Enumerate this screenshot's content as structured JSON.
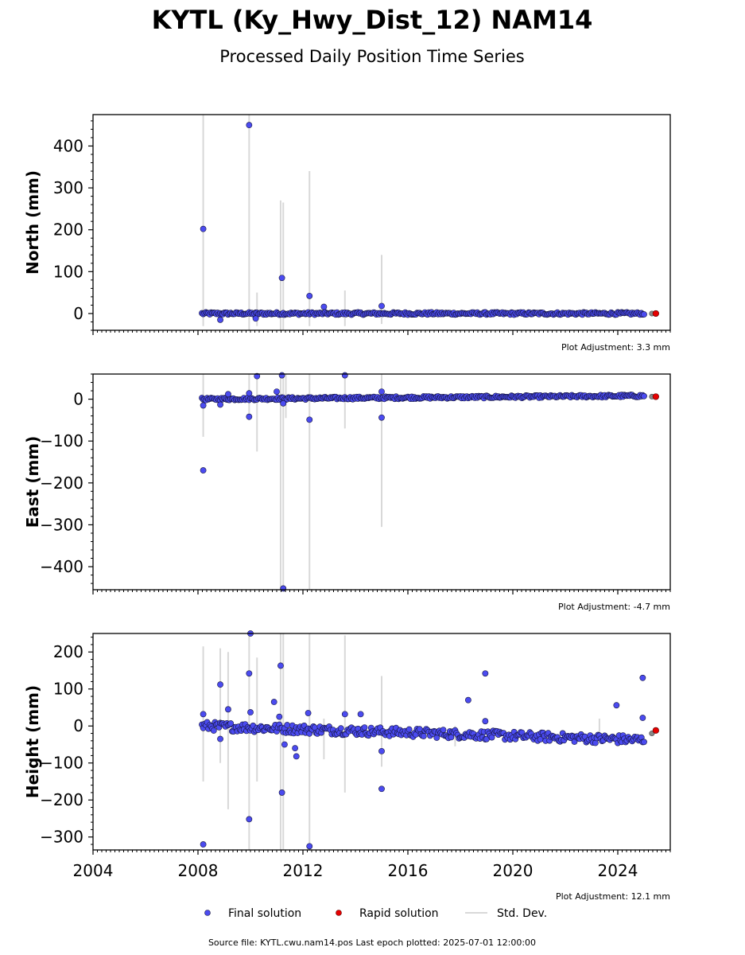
{
  "title": "KYTL (Ky_Hwy_Dist_12) NAM14",
  "subtitle": "Processed Daily Position Time Series",
  "footer": "Source file: KYTL.cwu.nam14.pos  Last epoch plotted: 2025-07-01 12:00:00",
  "legend": {
    "final_label": "Final solution",
    "rapid_label": "Rapid solution",
    "std_label": "Std. Dev."
  },
  "colors": {
    "final": "#4b4bf0",
    "rapid": "#e60000",
    "std": "#d8d8d8",
    "edge": "#14143c"
  },
  "chart_data": [
    {
      "type": "scatter",
      "ylabel": "North (mm)",
      "xlim": [
        2004,
        2026
      ],
      "ylim": [
        -40,
        475
      ],
      "yticks": [
        0,
        100,
        200,
        300,
        400
      ],
      "ytick_labels": [
        "0",
        "100",
        "200",
        "300",
        "400"
      ],
      "xticks": [
        2004,
        2008,
        2012,
        2016,
        2020,
        2024
      ],
      "xtick_labels": [],
      "adjustment": "Plot Adjustment: 3.3 mm",
      "base": {
        "start": 2008.15,
        "end": 2025.0,
        "y0": 0,
        "y1": 0,
        "noise": 3
      },
      "outliers": [
        [
          2008.2,
          202
        ],
        [
          2009.95,
          450
        ],
        [
          2011.2,
          85
        ],
        [
          2012.25,
          42
        ],
        [
          2012.8,
          16
        ],
        [
          2015.0,
          18
        ],
        [
          2010.2,
          -12
        ],
        [
          2008.85,
          -15
        ]
      ],
      "std_bars": [
        [
          2008.2,
          -30,
          475
        ],
        [
          2009.95,
          -40,
          475
        ],
        [
          2010.25,
          -30,
          50
        ],
        [
          2011.15,
          -40,
          270
        ],
        [
          2011.25,
          -40,
          265
        ],
        [
          2012.25,
          -30,
          340
        ],
        [
          2013.6,
          -30,
          55
        ],
        [
          2015.0,
          -25,
          140
        ]
      ],
      "rapid": [
        [
          2025.45,
          0
        ]
      ],
      "rapid_final": [
        [
          2025.3,
          0
        ]
      ]
    },
    {
      "type": "scatter",
      "ylabel": "East (mm)",
      "xlim": [
        2004,
        2026
      ],
      "ylim": [
        -455,
        60
      ],
      "yticks": [
        -400,
        -300,
        -200,
        -100,
        0
      ],
      "ytick_labels": [
        "−400",
        "−300",
        "−200",
        "−100",
        "0"
      ],
      "xticks": [
        2004,
        2008,
        2012,
        2016,
        2020,
        2024
      ],
      "xtick_labels": [],
      "adjustment": "Plot Adjustment: -4.7 mm",
      "base": {
        "start": 2008.15,
        "end": 2025.0,
        "y0": 0,
        "y1": 8,
        "noise": 3
      },
      "outliers": [
        [
          2008.2,
          -170
        ],
        [
          2008.2,
          -15
        ],
        [
          2009.15,
          12
        ],
        [
          2008.85,
          -13
        ],
        [
          2009.95,
          -42
        ],
        [
          2009.95,
          14
        ],
        [
          2010.25,
          55
        ],
        [
          2011.0,
          18
        ],
        [
          2011.2,
          57
        ],
        [
          2011.25,
          -10
        ],
        [
          2011.25,
          -452
        ],
        [
          2012.25,
          -49
        ],
        [
          2013.6,
          57
        ],
        [
          2015.0,
          -44
        ],
        [
          2015.0,
          18
        ]
      ],
      "std_bars": [
        [
          2008.2,
          -90,
          60
        ],
        [
          2009.95,
          -50,
          60
        ],
        [
          2010.25,
          -125,
          60
        ],
        [
          2011.15,
          -455,
          60
        ],
        [
          2011.25,
          -455,
          60
        ],
        [
          2011.35,
          -45,
          60
        ],
        [
          2012.25,
          -455,
          60
        ],
        [
          2013.6,
          -70,
          60
        ],
        [
          2015.0,
          -305,
          60
        ]
      ],
      "rapid": [
        [
          2025.45,
          6
        ]
      ],
      "rapid_final": [
        [
          2025.3,
          6
        ]
      ]
    },
    {
      "type": "scatter",
      "ylabel": "Height (mm)",
      "xlim": [
        2004,
        2026
      ],
      "ylim": [
        -335,
        250
      ],
      "yticks": [
        -300,
        -200,
        -100,
        0,
        100,
        200
      ],
      "ytick_labels": [
        "−300",
        "−200",
        "−100",
        "0",
        "100",
        "200"
      ],
      "xticks": [
        2004,
        2008,
        2012,
        2016,
        2020,
        2024
      ],
      "xtick_labels": [
        "2004",
        "2008",
        "2012",
        "2016",
        "2020",
        "2024"
      ],
      "adjustment": "Plot Adjustment: 12.1 mm",
      "base": {
        "start": 2008.15,
        "end": 2025.0,
        "y0": 0,
        "y1": -38,
        "noise": 12
      },
      "outliers": [
        [
          2008.2,
          -320
        ],
        [
          2008.2,
          32
        ],
        [
          2008.85,
          112
        ],
        [
          2008.85,
          -35
        ],
        [
          2009.15,
          45
        ],
        [
          2009.95,
          142
        ],
        [
          2009.95,
          -252
        ],
        [
          2010.0,
          250
        ],
        [
          2010.0,
          37
        ],
        [
          2010.9,
          65
        ],
        [
          2011.15,
          163
        ],
        [
          2011.2,
          -180
        ],
        [
          2011.1,
          25
        ],
        [
          2011.3,
          -50
        ],
        [
          2011.7,
          -60
        ],
        [
          2011.75,
          -82
        ],
        [
          2012.2,
          35
        ],
        [
          2012.25,
          -325
        ],
        [
          2013.6,
          32
        ],
        [
          2014.2,
          32
        ],
        [
          2015.0,
          -170
        ],
        [
          2015.0,
          -68
        ],
        [
          2018.3,
          70
        ],
        [
          2018.95,
          142
        ],
        [
          2018.95,
          13
        ],
        [
          2023.95,
          56
        ],
        [
          2024.95,
          130
        ],
        [
          2024.95,
          22
        ]
      ],
      "std_bars": [
        [
          2008.2,
          -150,
          215
        ],
        [
          2008.85,
          -100,
          210
        ],
        [
          2009.15,
          -225,
          200
        ],
        [
          2009.95,
          -335,
          250
        ],
        [
          2010.25,
          -150,
          185
        ],
        [
          2011.15,
          -335,
          250
        ],
        [
          2011.25,
          -335,
          250
        ],
        [
          2012.25,
          -335,
          250
        ],
        [
          2012.8,
          -90,
          20
        ],
        [
          2013.6,
          -180,
          245
        ],
        [
          2015.0,
          -110,
          135
        ],
        [
          2017.8,
          -55,
          0
        ],
        [
          2023.3,
          -40,
          20
        ]
      ],
      "rapid": [
        [
          2025.45,
          -12
        ]
      ],
      "rapid_final": [
        [
          2025.3,
          -20
        ]
      ]
    }
  ]
}
